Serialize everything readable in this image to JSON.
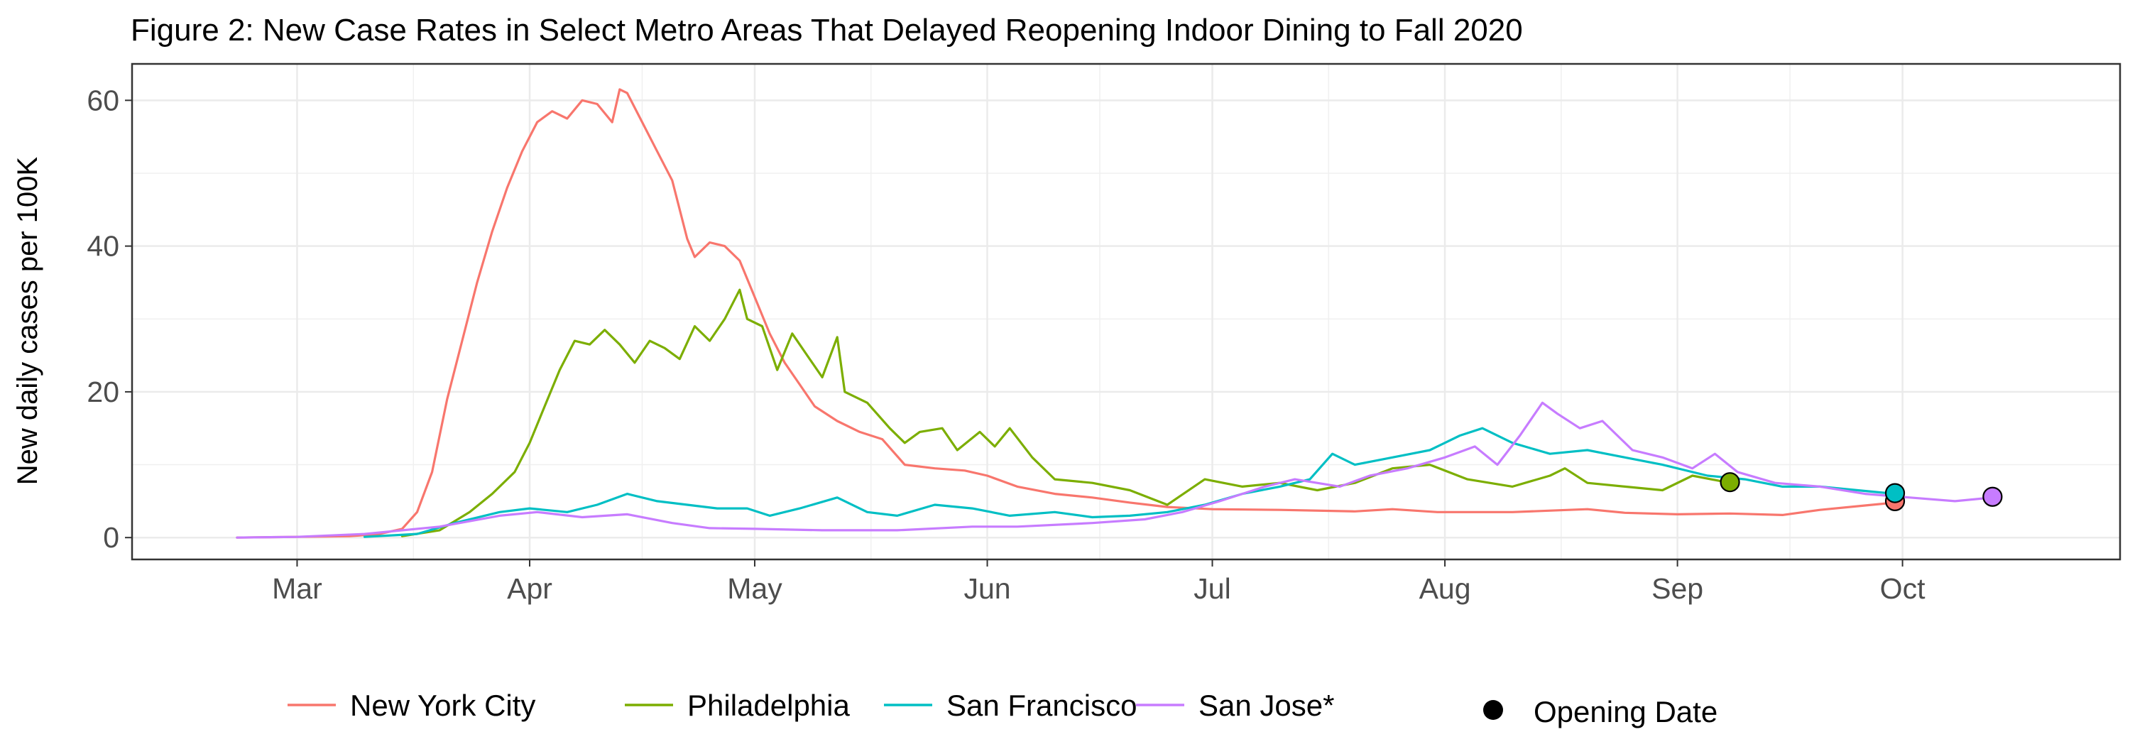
{
  "chart_data": {
    "type": "line",
    "title": "Figure 2: New Case Rates in Select Metro Areas That Delayed Reopening Indoor Dining to Fall 2020",
    "ylabel": "New daily cases per 100K",
    "xlabel": "",
    "ylim": [
      -3,
      65
    ],
    "y_ticks": [
      0,
      20,
      40,
      60
    ],
    "x_ticks": [
      {
        "label": "Mar",
        "date": "2020-03-01"
      },
      {
        "label": "Apr",
        "date": "2020-04-01"
      },
      {
        "label": "May",
        "date": "2020-05-01"
      },
      {
        "label": "Jun",
        "date": "2020-06-01"
      },
      {
        "label": "Jul",
        "date": "2020-07-01"
      },
      {
        "label": "Aug",
        "date": "2020-08-01"
      },
      {
        "label": "Sep",
        "date": "2020-09-01"
      },
      {
        "label": "Oct",
        "date": "2020-10-01"
      }
    ],
    "xlim": [
      "2020-02-08",
      "2020-10-30"
    ],
    "grid": true,
    "legend_position": "bottom",
    "marker_legend": "Opening Date",
    "series": [
      {
        "name": "New York City",
        "color": "#F8766D",
        "points": [
          [
            "2020-02-22",
            0
          ],
          [
            "2020-03-01",
            0.1
          ],
          [
            "2020-03-08",
            0.2
          ],
          [
            "2020-03-12",
            0.5
          ],
          [
            "2020-03-15",
            1.2
          ],
          [
            "2020-03-17",
            3.5
          ],
          [
            "2020-03-19",
            9
          ],
          [
            "2020-03-21",
            19
          ],
          [
            "2020-03-23",
            27
          ],
          [
            "2020-03-25",
            35
          ],
          [
            "2020-03-27",
            42
          ],
          [
            "2020-03-29",
            48
          ],
          [
            "2020-03-31",
            53
          ],
          [
            "2020-04-02",
            57
          ],
          [
            "2020-04-04",
            58.5
          ],
          [
            "2020-04-06",
            57.5
          ],
          [
            "2020-04-08",
            60
          ],
          [
            "2020-04-10",
            59.5
          ],
          [
            "2020-04-12",
            57
          ],
          [
            "2020-04-13",
            61.5
          ],
          [
            "2020-04-14",
            61
          ],
          [
            "2020-04-16",
            57
          ],
          [
            "2020-04-18",
            53
          ],
          [
            "2020-04-20",
            49
          ],
          [
            "2020-04-22",
            41
          ],
          [
            "2020-04-23",
            38.5
          ],
          [
            "2020-04-25",
            40.5
          ],
          [
            "2020-04-27",
            40
          ],
          [
            "2020-04-29",
            38
          ],
          [
            "2020-05-01",
            33
          ],
          [
            "2020-05-03",
            28
          ],
          [
            "2020-05-05",
            24
          ],
          [
            "2020-05-07",
            21
          ],
          [
            "2020-05-09",
            18
          ],
          [
            "2020-05-12",
            16
          ],
          [
            "2020-05-15",
            14.5
          ],
          [
            "2020-05-18",
            13.5
          ],
          [
            "2020-05-21",
            10
          ],
          [
            "2020-05-25",
            9.5
          ],
          [
            "2020-05-29",
            9.2
          ],
          [
            "2020-06-01",
            8.5
          ],
          [
            "2020-06-05",
            7
          ],
          [
            "2020-06-10",
            6
          ],
          [
            "2020-06-15",
            5.5
          ],
          [
            "2020-06-20",
            4.8
          ],
          [
            "2020-06-25",
            4.2
          ],
          [
            "2020-07-01",
            3.9
          ],
          [
            "2020-07-10",
            3.8
          ],
          [
            "2020-07-20",
            3.6
          ],
          [
            "2020-07-25",
            3.9
          ],
          [
            "2020-07-31",
            3.5
          ],
          [
            "2020-08-10",
            3.5
          ],
          [
            "2020-08-20",
            3.9
          ],
          [
            "2020-08-25",
            3.4
          ],
          [
            "2020-09-01",
            3.2
          ],
          [
            "2020-09-08",
            3.3
          ],
          [
            "2020-09-15",
            3.1
          ],
          [
            "2020-09-20",
            3.8
          ],
          [
            "2020-09-26",
            4.4
          ],
          [
            "2020-09-30",
            4.8
          ]
        ],
        "opening": [
          "2020-09-30",
          5
        ]
      },
      {
        "name": "Philadelphia",
        "color": "#7CAE00",
        "points": [
          [
            "2020-03-15",
            0.2
          ],
          [
            "2020-03-20",
            1
          ],
          [
            "2020-03-24",
            3.5
          ],
          [
            "2020-03-27",
            6
          ],
          [
            "2020-03-30",
            9
          ],
          [
            "2020-04-01",
            13
          ],
          [
            "2020-04-03",
            18
          ],
          [
            "2020-04-05",
            23
          ],
          [
            "2020-04-07",
            27
          ],
          [
            "2020-04-09",
            26.5
          ],
          [
            "2020-04-11",
            28.5
          ],
          [
            "2020-04-13",
            26.5
          ],
          [
            "2020-04-15",
            24
          ],
          [
            "2020-04-17",
            27
          ],
          [
            "2020-04-19",
            26
          ],
          [
            "2020-04-21",
            24.5
          ],
          [
            "2020-04-23",
            29
          ],
          [
            "2020-04-25",
            27
          ],
          [
            "2020-04-27",
            30
          ],
          [
            "2020-04-29",
            34
          ],
          [
            "2020-04-30",
            30
          ],
          [
            "2020-05-02",
            29
          ],
          [
            "2020-05-04",
            23
          ],
          [
            "2020-05-06",
            28
          ],
          [
            "2020-05-08",
            25
          ],
          [
            "2020-05-10",
            22
          ],
          [
            "2020-05-12",
            27.5
          ],
          [
            "2020-05-13",
            20
          ],
          [
            "2020-05-16",
            18.5
          ],
          [
            "2020-05-19",
            15
          ],
          [
            "2020-05-21",
            13
          ],
          [
            "2020-05-23",
            14.5
          ],
          [
            "2020-05-26",
            15
          ],
          [
            "2020-05-28",
            12
          ],
          [
            "2020-05-31",
            14.5
          ],
          [
            "2020-06-02",
            12.5
          ],
          [
            "2020-06-04",
            15
          ],
          [
            "2020-06-07",
            11
          ],
          [
            "2020-06-10",
            8
          ],
          [
            "2020-06-15",
            7.5
          ],
          [
            "2020-06-20",
            6.5
          ],
          [
            "2020-06-25",
            4.5
          ],
          [
            "2020-06-30",
            8
          ],
          [
            "2020-07-05",
            7
          ],
          [
            "2020-07-10",
            7.5
          ],
          [
            "2020-07-15",
            6.5
          ],
          [
            "2020-07-20",
            7.5
          ],
          [
            "2020-07-25",
            9.5
          ],
          [
            "2020-07-30",
            10
          ],
          [
            "2020-08-04",
            8
          ],
          [
            "2020-08-10",
            7
          ],
          [
            "2020-08-15",
            8.5
          ],
          [
            "2020-08-17",
            9.5
          ],
          [
            "2020-08-20",
            7.5
          ],
          [
            "2020-08-25",
            7
          ],
          [
            "2020-08-30",
            6.5
          ],
          [
            "2020-09-03",
            8.5
          ],
          [
            "2020-09-08",
            7.5
          ]
        ],
        "opening": [
          "2020-09-08",
          7.6
        ]
      },
      {
        "name": "San Francisco",
        "color": "#00BFC4",
        "points": [
          [
            "2020-03-10",
            0.1
          ],
          [
            "2020-03-17",
            0.5
          ],
          [
            "2020-03-22",
            2
          ],
          [
            "2020-03-28",
            3.5
          ],
          [
            "2020-04-01",
            4
          ],
          [
            "2020-04-06",
            3.5
          ],
          [
            "2020-04-10",
            4.5
          ],
          [
            "2020-04-14",
            6
          ],
          [
            "2020-04-18",
            5
          ],
          [
            "2020-04-22",
            4.5
          ],
          [
            "2020-04-26",
            4
          ],
          [
            "2020-04-30",
            4
          ],
          [
            "2020-05-03",
            3
          ],
          [
            "2020-05-07",
            4
          ],
          [
            "2020-05-12",
            5.5
          ],
          [
            "2020-05-16",
            3.5
          ],
          [
            "2020-05-20",
            3
          ],
          [
            "2020-05-25",
            4.5
          ],
          [
            "2020-05-30",
            4
          ],
          [
            "2020-06-04",
            3
          ],
          [
            "2020-06-10",
            3.5
          ],
          [
            "2020-06-15",
            2.8
          ],
          [
            "2020-06-20",
            3
          ],
          [
            "2020-06-25",
            3.5
          ],
          [
            "2020-06-30",
            4.5
          ],
          [
            "2020-07-05",
            6
          ],
          [
            "2020-07-10",
            7
          ],
          [
            "2020-07-14",
            8
          ],
          [
            "2020-07-17",
            11.5
          ],
          [
            "2020-07-20",
            10
          ],
          [
            "2020-07-25",
            11
          ],
          [
            "2020-07-30",
            12
          ],
          [
            "2020-08-03",
            14
          ],
          [
            "2020-08-06",
            15
          ],
          [
            "2020-08-10",
            13
          ],
          [
            "2020-08-15",
            11.5
          ],
          [
            "2020-08-20",
            12
          ],
          [
            "2020-08-25",
            11
          ],
          [
            "2020-08-30",
            10
          ],
          [
            "2020-09-05",
            8.5
          ],
          [
            "2020-09-10",
            8
          ],
          [
            "2020-09-15",
            7
          ],
          [
            "2020-09-20",
            7
          ],
          [
            "2020-09-25",
            6.5
          ],
          [
            "2020-09-30",
            6
          ]
        ],
        "opening": [
          "2020-09-30",
          6.1
        ]
      },
      {
        "name": "San Jose*",
        "color": "#C77CFF",
        "points": [
          [
            "2020-02-22",
            0
          ],
          [
            "2020-03-01",
            0.1
          ],
          [
            "2020-03-10",
            0.5
          ],
          [
            "2020-03-20",
            1.5
          ],
          [
            "2020-03-28",
            3
          ],
          [
            "2020-04-02",
            3.5
          ],
          [
            "2020-04-08",
            2.8
          ],
          [
            "2020-04-14",
            3.2
          ],
          [
            "2020-04-20",
            2
          ],
          [
            "2020-04-25",
            1.3
          ],
          [
            "2020-05-01",
            1.2
          ],
          [
            "2020-05-10",
            1
          ],
          [
            "2020-05-20",
            1
          ],
          [
            "2020-05-30",
            1.5
          ],
          [
            "2020-06-05",
            1.5
          ],
          [
            "2020-06-15",
            2
          ],
          [
            "2020-06-22",
            2.5
          ],
          [
            "2020-06-27",
            3.5
          ],
          [
            "2020-07-02",
            5
          ],
          [
            "2020-07-08",
            7
          ],
          [
            "2020-07-12",
            8
          ],
          [
            "2020-07-18",
            7
          ],
          [
            "2020-07-22",
            8.5
          ],
          [
            "2020-07-27",
            9.5
          ],
          [
            "2020-08-01",
            11
          ],
          [
            "2020-08-05",
            12.5
          ],
          [
            "2020-08-08",
            10
          ],
          [
            "2020-08-11",
            14
          ],
          [
            "2020-08-14",
            18.5
          ],
          [
            "2020-08-16",
            17
          ],
          [
            "2020-08-19",
            15
          ],
          [
            "2020-08-22",
            16
          ],
          [
            "2020-08-26",
            12
          ],
          [
            "2020-08-30",
            11
          ],
          [
            "2020-09-03",
            9.5
          ],
          [
            "2020-09-06",
            11.5
          ],
          [
            "2020-09-09",
            9
          ],
          [
            "2020-09-14",
            7.5
          ],
          [
            "2020-09-20",
            7
          ],
          [
            "2020-09-26",
            6
          ],
          [
            "2020-10-02",
            5.5
          ],
          [
            "2020-10-08",
            5
          ],
          [
            "2020-10-13",
            5.5
          ]
        ],
        "opening": [
          "2020-10-13",
          5.6
        ]
      }
    ]
  }
}
